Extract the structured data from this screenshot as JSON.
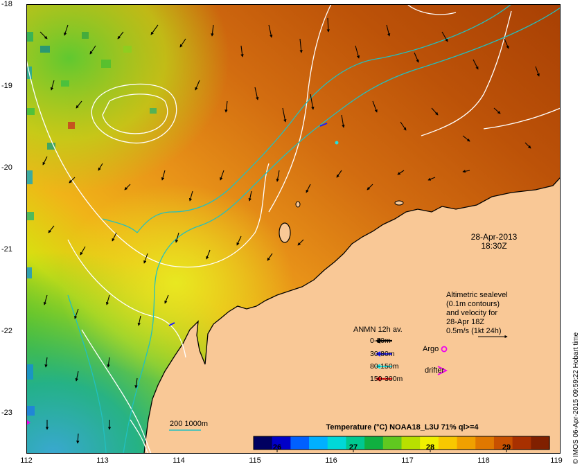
{
  "axes": {
    "y_ticks": [
      "-18",
      "-19",
      "-20",
      "-21",
      "-22",
      "-23"
    ],
    "x_ticks": [
      "112",
      "113",
      "114",
      "115",
      "116",
      "117",
      "118",
      "119"
    ]
  },
  "date_stamp": {
    "date": "28-Apr-2013",
    "time": "18:30Z"
  },
  "altimetry_note": {
    "lines": [
      "Altimetric sealevel",
      "(0.1m contours)",
      "and velocity for",
      "28-Apr 18Z",
      "0.5m/s (1kt 24h)"
    ]
  },
  "anmn_legend": {
    "title": "ANMN 12h av.",
    "items": [
      {
        "label": "0-30m",
        "color": "#000000"
      },
      {
        "label": "30-80m",
        "color": "#1a1aff"
      },
      {
        "label": "80-150m",
        "color": "#22e0e0"
      },
      {
        "label": "150-300m",
        "color": "#ee1111"
      }
    ]
  },
  "markers_legend": {
    "argo": {
      "label": "Argo",
      "color": "#ee00ee"
    },
    "drifter": {
      "label": "drifter",
      "color": "#ee00ee"
    }
  },
  "isobath_legend": {
    "label": "200  1000m",
    "color": "#22c0c0"
  },
  "colorbar": {
    "title": "Temperature (°C) NOAA18_L3U 71% ql>=4",
    "ticks": [
      "26",
      "27",
      "28",
      "29"
    ],
    "colors": [
      "#000060",
      "#0000c8",
      "#0060ff",
      "#00b0ff",
      "#00d8d8",
      "#00c890",
      "#10b040",
      "#60c820",
      "#b8e000",
      "#f0f000",
      "#f8c800",
      "#f0a000",
      "#e07800",
      "#c85000",
      "#a83000",
      "#802000"
    ]
  },
  "credit": "© IMOS 06-Apr-2015 09:59:22 Hobart time",
  "colors": {
    "land": "#f9c896",
    "frame": "#000000"
  }
}
